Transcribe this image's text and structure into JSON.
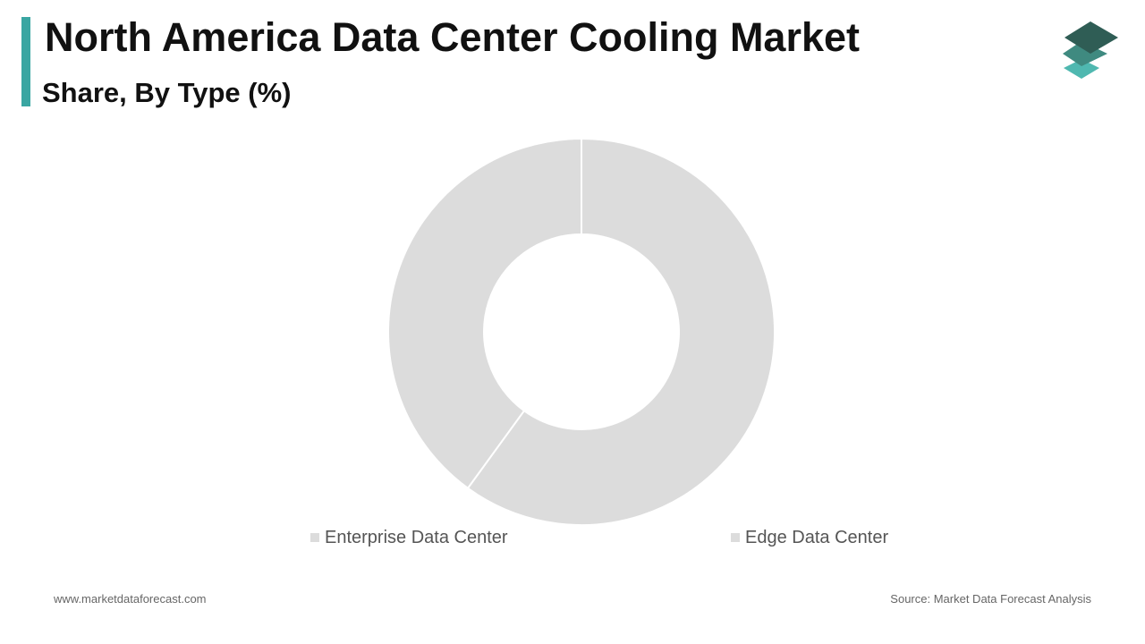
{
  "header": {
    "title": "North America Data Center Cooling Market",
    "subtitle": "Share, By Type (%)",
    "accent_color": "#3aa6a2"
  },
  "logo": {
    "icon": "stacked-layers-icon",
    "colors": [
      "#2f5d55",
      "#3f8a80",
      "#4fb8b0"
    ]
  },
  "chart_data": {
    "type": "pie",
    "donut": true,
    "categories": [
      "Enterprise Data Center",
      "Edge Data Center"
    ],
    "values": [
      60,
      40
    ],
    "colors": [
      "#dcdcdc",
      "#dcdcdc"
    ],
    "legend": "bottom"
  },
  "footer": {
    "website": "www.marketdataforecast.com",
    "source": "Source: Market Data Forecast Analysis"
  }
}
